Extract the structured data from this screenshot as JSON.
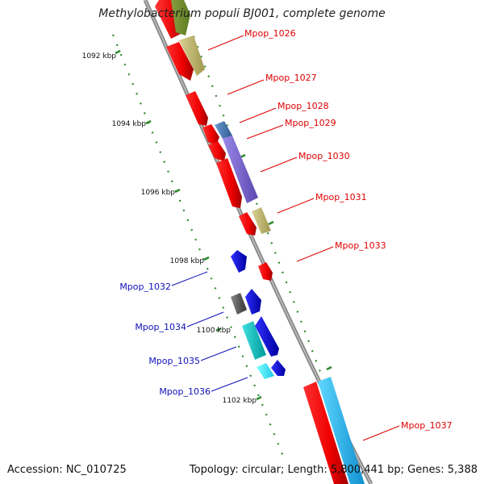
{
  "title": "Methylobacterium populi BJ001, complete genome",
  "footer": {
    "accession": "Accession: NC_010725",
    "stats": "Topology: circular; Length: 5,800,441 bp; Genes: 5,388"
  },
  "colors": {
    "backbone": "#8a8a8a",
    "tick": "#2e8b2e",
    "label_forward": "#dd0000",
    "label_reverse": "#1010bb"
  },
  "tick_labels": [
    "1092 kbp",
    "1094 kbp",
    "1096 kbp",
    "1098 kbp",
    "1100 kbp",
    "1102 kbp"
  ],
  "genes": [
    {
      "label": "Mpop_1026",
      "strand": "+"
    },
    {
      "label": "Mpop_1027",
      "strand": "+"
    },
    {
      "label": "Mpop_1028",
      "strand": "+"
    },
    {
      "label": "Mpop_1029",
      "strand": "+"
    },
    {
      "label": "Mpop_1030",
      "strand": "+"
    },
    {
      "label": "Mpop_1031",
      "strand": "+"
    },
    {
      "label": "Mpop_1033",
      "strand": "+"
    },
    {
      "label": "Mpop_1037",
      "strand": "+"
    },
    {
      "label": "Mpop_1032",
      "strand": "-"
    },
    {
      "label": "Mpop_1034",
      "strand": "-"
    },
    {
      "label": "Mpop_1035",
      "strand": "-"
    },
    {
      "label": "Mpop_1036",
      "strand": "-"
    }
  ]
}
